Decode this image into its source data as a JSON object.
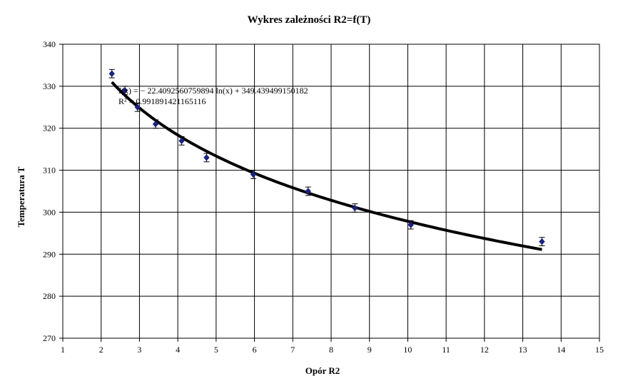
{
  "chart_data": {
    "type": "scatter",
    "title": "Wykres zależności R2=f(T)",
    "xlabel": "Opór R2",
    "ylabel": "Temperatura T",
    "xlim": [
      1,
      15
    ],
    "ylim": [
      270,
      340
    ],
    "x_ticks": [
      1,
      2,
      3,
      4,
      5,
      6,
      7,
      8,
      9,
      10,
      11,
      12,
      13,
      14,
      15
    ],
    "y_ticks": [
      270,
      280,
      290,
      300,
      310,
      320,
      330,
      340
    ],
    "grid": true,
    "legend": "none",
    "marker_color": "#1a237e",
    "series": [
      {
        "x": [
          2.28,
          2.62,
          2.95,
          3.42,
          4.1,
          4.75,
          5.97,
          7.4,
          8.62,
          10.08,
          13.5
        ],
        "y": [
          333,
          329,
          325,
          321,
          317,
          313,
          309,
          305,
          301,
          297,
          293
        ],
        "error": 1
      }
    ],
    "trendline": {
      "type": "logarithmic",
      "a": -22.4092560759894,
      "b": 349.439499150182,
      "x_range": [
        2.28,
        13.5
      ],
      "equation": "f(x) = − 22.4092560759894 ln(x) + 349.439499150182",
      "r2_label": "R² = 0.991891421165116"
    }
  }
}
